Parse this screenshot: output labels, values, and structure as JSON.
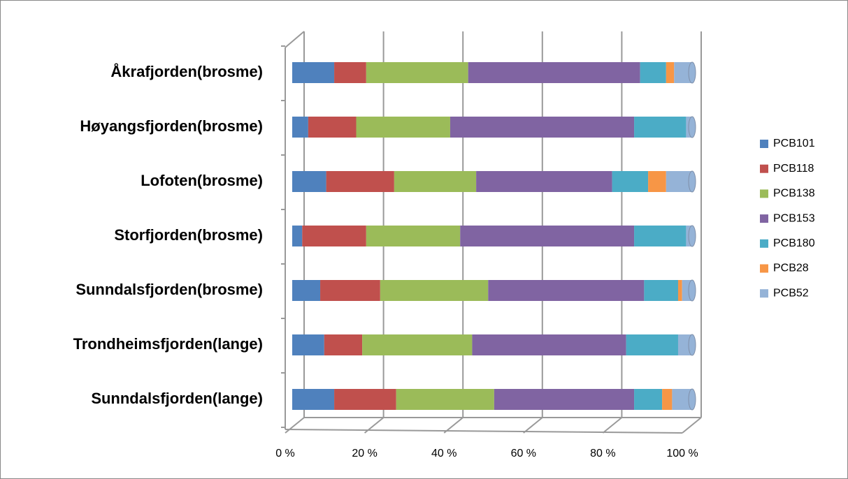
{
  "chart_data": {
    "type": "bar",
    "orientation": "horizontal",
    "stacked": true,
    "categories": [
      "Åkrafjorden(brosme)",
      "Høyangsfjorden(brosme)",
      "Lofoten(brosme)",
      "Storfjorden(brosme)",
      "Sunndalsfjorden(brosme)",
      "Trondheimsfjorden(lange)",
      "Sunndalsfjorden(lange)"
    ],
    "series": [
      {
        "name": "PCB101",
        "color": "#4f81bd",
        "values": [
          10.5,
          4,
          8.5,
          2.5,
          7,
          8,
          10.5
        ]
      },
      {
        "name": "PCB118",
        "color": "#c0504d",
        "values": [
          8,
          12,
          17,
          16,
          15,
          9.5,
          15.5
        ]
      },
      {
        "name": "PCB138",
        "color": "#9bbb59",
        "values": [
          25.5,
          23.5,
          20.5,
          23.5,
          27,
          27.5,
          24.5
        ]
      },
      {
        "name": "PCB153",
        "color": "#8064a2",
        "values": [
          43,
          46,
          34,
          43.5,
          39,
          38.5,
          35
        ]
      },
      {
        "name": "PCB180",
        "color": "#4bacc6",
        "values": [
          6.5,
          13,
          9,
          13,
          8.5,
          13,
          7
        ]
      },
      {
        "name": "PCB28",
        "color": "#f79646",
        "values": [
          2,
          0,
          4.5,
          0,
          1,
          0,
          2.5
        ]
      },
      {
        "name": "PCB52",
        "color": "#95b3d7",
        "values": [
          4.5,
          1.5,
          6.5,
          1.5,
          2.5,
          3.5,
          5
        ]
      }
    ],
    "xlim": [
      0,
      100
    ],
    "xticks": [
      {
        "value": 0,
        "label": "0 %"
      },
      {
        "value": 20,
        "label": "20 %"
      },
      {
        "value": 40,
        "label": "40 %"
      },
      {
        "value": 60,
        "label": "60 %"
      },
      {
        "value": 80,
        "label": "80 %"
      },
      {
        "value": 100,
        "label": "100 %"
      }
    ],
    "grid": true,
    "legend": "right"
  }
}
